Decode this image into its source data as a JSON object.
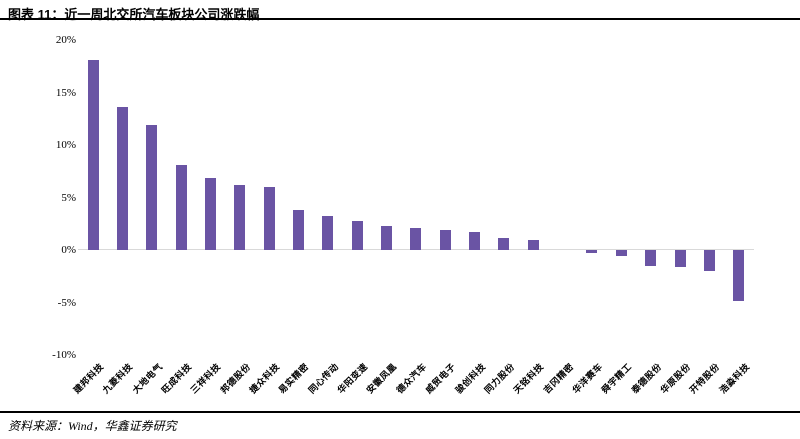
{
  "header": {
    "title": "图表 11：近一周北交所汽车板块公司涨跌幅"
  },
  "footer": {
    "source": "资料来源：Wind，华鑫证券研究"
  },
  "chart_data": {
    "type": "bar",
    "title": "近一周北交所汽车板块公司涨跌幅",
    "categories": [
      "建邦科技",
      "九菱科技",
      "大地电气",
      "旺成科技",
      "三祥科技",
      "邦德股份",
      "捷众科技",
      "易实精密",
      "同心传动",
      "华阳变速",
      "安徽凤凰",
      "德众汽车",
      "威贸电子",
      "骏创科技",
      "同力股份",
      "天铭科技",
      "吉冈精密",
      "华洋赛车",
      "舜宇精工",
      "泰德股份",
      "华原股份",
      "开特股份",
      "浩淼科技"
    ],
    "values": [
      18.1,
      13.6,
      11.9,
      8.1,
      6.9,
      6.2,
      6.0,
      3.8,
      3.2,
      2.8,
      2.3,
      2.1,
      1.9,
      1.7,
      1.1,
      1.0,
      0.0,
      -0.3,
      -0.6,
      -1.5,
      -1.6,
      -2.0,
      -4.9
    ],
    "unit": "%",
    "xlabel": "",
    "ylabel": "",
    "ylim": [
      -10,
      20
    ],
    "y_ticks": [
      "20%",
      "15%",
      "10%",
      "5%",
      "0%",
      "-5%",
      "-10%"
    ],
    "grid": false,
    "legend": "none",
    "bar_color": "#6A54A4",
    "axis_line_color": "#d9d9d9"
  }
}
